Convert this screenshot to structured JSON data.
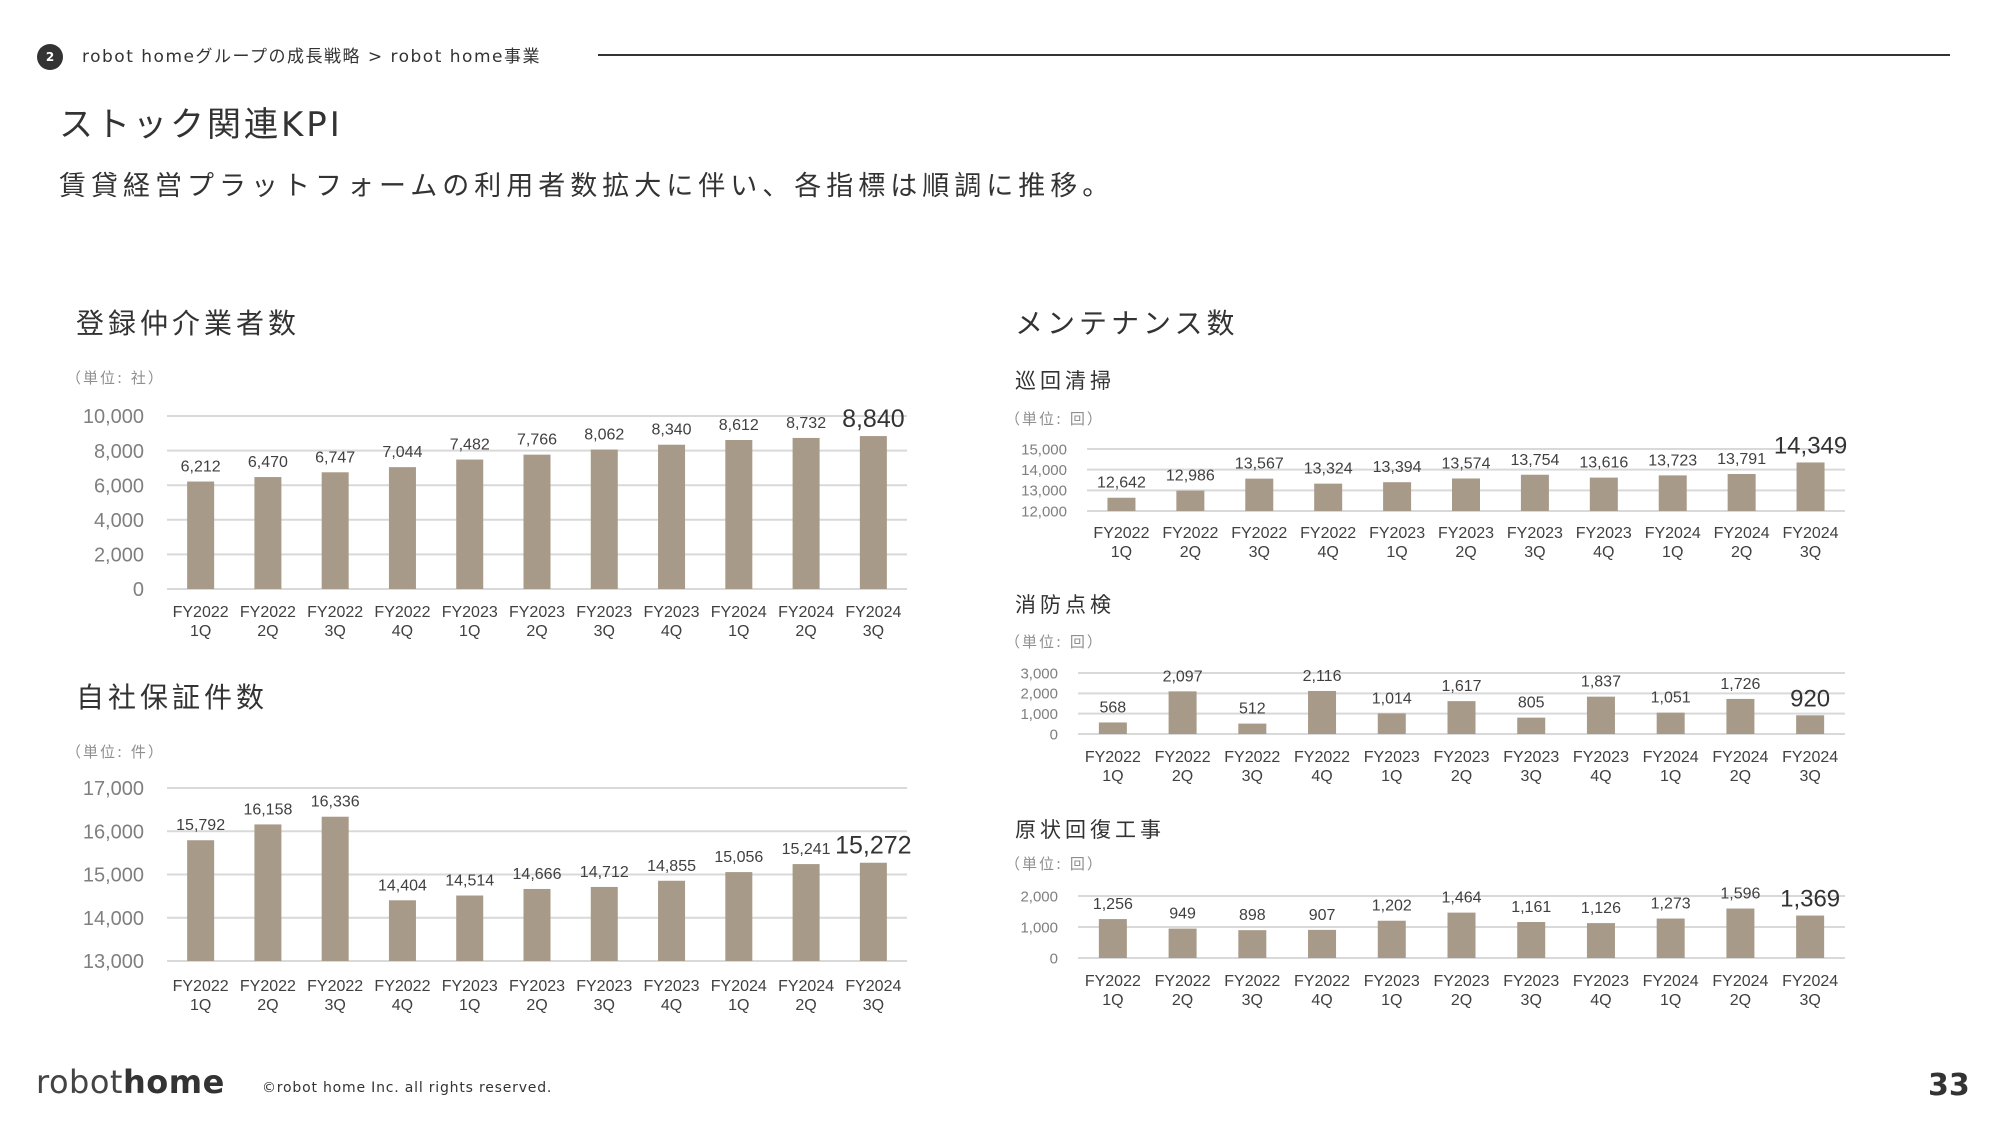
{
  "header": {
    "section_number": "2",
    "breadcrumb": "robot homeグループの成長戦略 > robot home事業",
    "title": "ストック関連KPI",
    "subtitle": "賃貸経営プラットフォームの利用者数拡大に伴い、各指標は順調に推移。"
  },
  "sections": {
    "left_top_title": "登録仲介業者数",
    "left_bottom_title": "自社保証件数",
    "right_title": "メンテナンス数"
  },
  "colors": {
    "bar": "#a89a88",
    "grid": "#d9d9d9",
    "axis_text": "#7f7f7f",
    "label_text": "#404040",
    "text": "#333333"
  },
  "chart_data": [
    {
      "id": "brokers",
      "type": "bar",
      "title": "登録仲介業者数",
      "unit_label": "（単位: 社）",
      "categories": [
        "FY2022\n1Q",
        "FY2022\n2Q",
        "FY2022\n3Q",
        "FY2022\n4Q",
        "FY2023\n1Q",
        "FY2023\n2Q",
        "FY2023\n3Q",
        "FY2023\n4Q",
        "FY2024\n1Q",
        "FY2024\n2Q",
        "FY2024\n3Q"
      ],
      "values": [
        6212,
        6470,
        6747,
        7044,
        7482,
        7766,
        8062,
        8340,
        8612,
        8732,
        8840
      ],
      "value_labels": [
        "6,212",
        "6,470",
        "6,747",
        "7,044",
        "7,482",
        "7,766",
        "8,062",
        "8,340",
        "8,612",
        "8,732",
        "8,840"
      ],
      "ylim": [
        0,
        10000
      ],
      "yticks": [
        0,
        2000,
        4000,
        6000,
        8000,
        10000
      ],
      "ytick_labels": [
        "0",
        "2,000",
        "4,000",
        "6,000",
        "8,000",
        "10,000"
      ],
      "grid": true,
      "highlight_last": true,
      "xlabel": "",
      "ylabel": ""
    },
    {
      "id": "guarantees",
      "type": "bar",
      "title": "自社保証件数",
      "unit_label": "（単位: 件）",
      "categories": [
        "FY2022\n1Q",
        "FY2022\n2Q",
        "FY2022\n3Q",
        "FY2022\n4Q",
        "FY2023\n1Q",
        "FY2023\n2Q",
        "FY2023\n3Q",
        "FY2023\n4Q",
        "FY2024\n1Q",
        "FY2024\n2Q",
        "FY2024\n3Q"
      ],
      "values": [
        15792,
        16158,
        16336,
        14404,
        14514,
        14666,
        14712,
        14855,
        15056,
        15241,
        15272
      ],
      "value_labels": [
        "15,792",
        "16,158",
        "16,336",
        "14,404",
        "14,514",
        "14,666",
        "14,712",
        "14,855",
        "15,056",
        "15,241",
        "15,272"
      ],
      "ylim": [
        13000,
        17000
      ],
      "yticks": [
        13000,
        14000,
        15000,
        16000,
        17000
      ],
      "ytick_labels": [
        "13,000",
        "14,000",
        "15,000",
        "16,000",
        "17,000"
      ],
      "grid": true,
      "highlight_last": true,
      "xlabel": "",
      "ylabel": ""
    },
    {
      "id": "cleaning",
      "type": "bar",
      "title": "巡回清掃",
      "unit_label": "（単位: 回）",
      "categories": [
        "FY2022\n1Q",
        "FY2022\n2Q",
        "FY2022\n3Q",
        "FY2022\n4Q",
        "FY2023\n1Q",
        "FY2023\n2Q",
        "FY2023\n3Q",
        "FY2023\n4Q",
        "FY2024\n1Q",
        "FY2024\n2Q",
        "FY2024\n3Q"
      ],
      "values": [
        12642,
        12986,
        13567,
        13324,
        13394,
        13574,
        13754,
        13616,
        13723,
        13791,
        14349
      ],
      "value_labels": [
        "12,642",
        "12,986",
        "13,567",
        "13,324",
        "13,394",
        "13,574",
        "13,754",
        "13,616",
        "13,723",
        "13,791",
        "14,349"
      ],
      "ylim": [
        12000,
        15000
      ],
      "yticks": [
        12000,
        13000,
        14000,
        15000
      ],
      "ytick_labels": [
        "12,000",
        "13,000",
        "14,000",
        "15,000"
      ],
      "grid": true,
      "highlight_last": true,
      "xlabel": "",
      "ylabel": ""
    },
    {
      "id": "fire_inspection",
      "type": "bar",
      "title": "消防点検",
      "unit_label": "（単位: 回）",
      "categories": [
        "FY2022\n1Q",
        "FY2022\n2Q",
        "FY2022\n3Q",
        "FY2022\n4Q",
        "FY2023\n1Q",
        "FY2023\n2Q",
        "FY2023\n3Q",
        "FY2023\n4Q",
        "FY2024\n1Q",
        "FY2024\n2Q",
        "FY2024\n3Q"
      ],
      "values": [
        568,
        2097,
        512,
        2116,
        1014,
        1617,
        805,
        1837,
        1051,
        1726,
        920
      ],
      "value_labels": [
        "568",
        "2,097",
        "512",
        "2,116",
        "1,014",
        "1,617",
        "805",
        "1,837",
        "1,051",
        "1,726",
        "920"
      ],
      "ylim": [
        0,
        3000
      ],
      "yticks": [
        0,
        1000,
        2000,
        3000
      ],
      "ytick_labels": [
        "0",
        "1,000",
        "2,000",
        "3,000"
      ],
      "grid": true,
      "highlight_last": true,
      "xlabel": "",
      "ylabel": ""
    },
    {
      "id": "restoration",
      "type": "bar",
      "title": "原状回復工事",
      "unit_label": "（単位: 回）",
      "categories": [
        "FY2022\n1Q",
        "FY2022\n2Q",
        "FY2022\n3Q",
        "FY2022\n4Q",
        "FY2023\n1Q",
        "FY2023\n2Q",
        "FY2023\n3Q",
        "FY2023\n4Q",
        "FY2024\n1Q",
        "FY2024\n2Q",
        "FY2024\n3Q"
      ],
      "values": [
        1256,
        949,
        898,
        907,
        1202,
        1464,
        1161,
        1126,
        1273,
        1596,
        1369
      ],
      "value_labels": [
        "1,256",
        "949",
        "898",
        "907",
        "1,202",
        "1,464",
        "1,161",
        "1,126",
        "1,273",
        "1,596",
        "1,369"
      ],
      "ylim": [
        0,
        2000
      ],
      "yticks": [
        0,
        1000,
        2000
      ],
      "ytick_labels": [
        "0",
        "1,000",
        "2,000"
      ],
      "grid": true,
      "highlight_last": true,
      "xlabel": "",
      "ylabel": ""
    }
  ],
  "footer": {
    "logo_light": "robot",
    "logo_bold": "home",
    "copyright": "©robot home Inc. all rights reserved.",
    "page_number": "33"
  }
}
